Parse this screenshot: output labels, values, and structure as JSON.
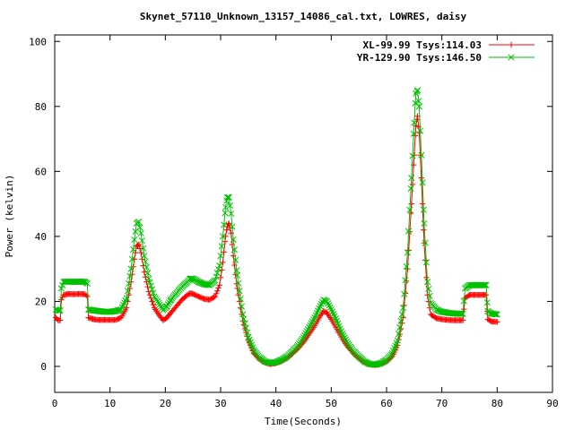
{
  "chart_data": {
    "type": "scatter",
    "title": "Skynet_57110_Unknown_13157_14086_cal.txt, LOWRES, daisy",
    "xlabel": "Time(Seconds)",
    "ylabel": "Power (kelvin)",
    "xlim": [
      0,
      90
    ],
    "ylim": [
      -8,
      102
    ],
    "xticks": [
      0,
      10,
      20,
      30,
      40,
      50,
      60,
      70,
      80,
      90
    ],
    "yticks": [
      0,
      20,
      40,
      60,
      80,
      100
    ],
    "grid": false,
    "legend_position": "top-right",
    "series": [
      {
        "name": "XL-99.99 Tsys:114.03",
        "color": "#ff0000",
        "marker": "plus",
        "points": [
          [
            0.2,
            15
          ],
          [
            0.6,
            14.2
          ],
          [
            1.0,
            14.2
          ],
          [
            1.2,
            20.5
          ],
          [
            1.6,
            22
          ],
          [
            2.5,
            22.3
          ],
          [
            3.5,
            22.2
          ],
          [
            4.5,
            22.3
          ],
          [
            5.5,
            22.2
          ],
          [
            5.9,
            21.5
          ],
          [
            6.1,
            15
          ],
          [
            7,
            14.5
          ],
          [
            8,
            14.3
          ],
          [
            9,
            14.3
          ],
          [
            10,
            14.3
          ],
          [
            11,
            14.3
          ],
          [
            12,
            15
          ],
          [
            13,
            18
          ],
          [
            13.8,
            26
          ],
          [
            14.4,
            33
          ],
          [
            14.8,
            37
          ],
          [
            15.2,
            37.5
          ],
          [
            15.6,
            35
          ],
          [
            16.2,
            29
          ],
          [
            17,
            23
          ],
          [
            18,
            18
          ],
          [
            19,
            15.5
          ],
          [
            19.6,
            14.2
          ],
          [
            20.3,
            15
          ],
          [
            21,
            16.5
          ],
          [
            22,
            18.5
          ],
          [
            23,
            20.5
          ],
          [
            24,
            22
          ],
          [
            24.5,
            22.5
          ],
          [
            25,
            22.3
          ],
          [
            26,
            21.5
          ],
          [
            27,
            20.8
          ],
          [
            28,
            20.5
          ],
          [
            29,
            21.5
          ],
          [
            29.8,
            25
          ],
          [
            30.4,
            32
          ],
          [
            30.9,
            40
          ],
          [
            31.2,
            43
          ],
          [
            31.5,
            44
          ],
          [
            31.9,
            41
          ],
          [
            32.3,
            34
          ],
          [
            33,
            24
          ],
          [
            34,
            14
          ],
          [
            35,
            8
          ],
          [
            36,
            4
          ],
          [
            37,
            2.3
          ],
          [
            38,
            1.2
          ],
          [
            39,
            0.7
          ],
          [
            40,
            1
          ],
          [
            41,
            1.6
          ],
          [
            42,
            2.6
          ],
          [
            43,
            4
          ],
          [
            44,
            5.5
          ],
          [
            45,
            7.5
          ],
          [
            46,
            10
          ],
          [
            47,
            12.5
          ],
          [
            48,
            15.5
          ],
          [
            48.6,
            17
          ],
          [
            49.2,
            16.5
          ],
          [
            50,
            14.5
          ],
          [
            51,
            11.5
          ],
          [
            52,
            8.5
          ],
          [
            53,
            6
          ],
          [
            54,
            4
          ],
          [
            55,
            2.5
          ],
          [
            56,
            1.3
          ],
          [
            57,
            0.6
          ],
          [
            58,
            0.4
          ],
          [
            59,
            0.8
          ],
          [
            60,
            1.5
          ],
          [
            61,
            3
          ],
          [
            62,
            6.5
          ],
          [
            63,
            15
          ],
          [
            63.8,
            30
          ],
          [
            64.5,
            50
          ],
          [
            65,
            65
          ],
          [
            65.3,
            74
          ],
          [
            65.6,
            77
          ],
          [
            65.9,
            72
          ],
          [
            66.3,
            58
          ],
          [
            66.8,
            38
          ],
          [
            67.4,
            22
          ],
          [
            68,
            16
          ],
          [
            69,
            14.8
          ],
          [
            70,
            14.5
          ],
          [
            71,
            14.3
          ],
          [
            72,
            14.2
          ],
          [
            73,
            14.2
          ],
          [
            73.8,
            14.2
          ],
          [
            74.2,
            21
          ],
          [
            75,
            22
          ],
          [
            76,
            22
          ],
          [
            77,
            22
          ],
          [
            78,
            22
          ],
          [
            78.3,
            14.5
          ],
          [
            79,
            13.8
          ],
          [
            80,
            13.7
          ]
        ]
      },
      {
        "name": "YR-129.90 Tsys:146.50",
        "color": "#00c000",
        "marker": "cross",
        "points": [
          [
            0.2,
            17.5
          ],
          [
            0.6,
            17.2
          ],
          [
            1.0,
            17.2
          ],
          [
            1.2,
            24
          ],
          [
            1.6,
            26
          ],
          [
            2.5,
            26.1
          ],
          [
            3.5,
            26
          ],
          [
            4.5,
            26.1
          ],
          [
            5.5,
            26
          ],
          [
            5.9,
            25.5
          ],
          [
            6.1,
            17.5
          ],
          [
            7,
            17.2
          ],
          [
            8,
            17
          ],
          [
            9,
            16.8
          ],
          [
            10,
            16.8
          ],
          [
            11,
            17
          ],
          [
            12,
            17.5
          ],
          [
            13,
            21
          ],
          [
            13.8,
            30
          ],
          [
            14.4,
            39
          ],
          [
            14.8,
            44
          ],
          [
            15.2,
            44.5
          ],
          [
            15.6,
            41
          ],
          [
            16.2,
            34
          ],
          [
            17,
            27
          ],
          [
            18,
            21.5
          ],
          [
            19,
            19
          ],
          [
            19.6,
            17.3
          ],
          [
            20.3,
            18.5
          ],
          [
            21,
            20.5
          ],
          [
            22,
            22.5
          ],
          [
            23,
            24.5
          ],
          [
            24,
            26
          ],
          [
            24.5,
            27
          ],
          [
            25,
            27
          ],
          [
            26,
            26
          ],
          [
            27,
            25.3
          ],
          [
            28,
            25
          ],
          [
            29,
            26.5
          ],
          [
            29.8,
            31
          ],
          [
            30.4,
            40
          ],
          [
            30.9,
            49
          ],
          [
            31.2,
            52
          ],
          [
            31.5,
            52
          ],
          [
            31.9,
            47
          ],
          [
            32.3,
            39
          ],
          [
            33,
            28
          ],
          [
            34,
            16
          ],
          [
            35,
            9
          ],
          [
            36,
            5
          ],
          [
            37,
            2.8
          ],
          [
            38,
            1.5
          ],
          [
            39,
            1
          ],
          [
            40,
            1.3
          ],
          [
            41,
            2
          ],
          [
            42,
            3
          ],
          [
            43,
            4.7
          ],
          [
            44,
            6.5
          ],
          [
            45,
            9
          ],
          [
            46,
            12
          ],
          [
            47,
            15
          ],
          [
            48,
            18.5
          ],
          [
            48.6,
            20.5
          ],
          [
            49.2,
            20
          ],
          [
            50,
            17.5
          ],
          [
            51,
            14
          ],
          [
            52,
            10
          ],
          [
            53,
            7
          ],
          [
            54,
            4.7
          ],
          [
            55,
            3
          ],
          [
            56,
            1.5
          ],
          [
            57,
            0.7
          ],
          [
            58,
            0.5
          ],
          [
            59,
            1
          ],
          [
            60,
            2
          ],
          [
            61,
            4
          ],
          [
            62,
            8
          ],
          [
            63,
            18
          ],
          [
            63.8,
            35
          ],
          [
            64.5,
            58
          ],
          [
            65,
            75
          ],
          [
            65.3,
            84
          ],
          [
            65.6,
            85
          ],
          [
            65.9,
            80
          ],
          [
            66.3,
            65
          ],
          [
            66.8,
            44
          ],
          [
            67.4,
            26
          ],
          [
            68,
            19.5
          ],
          [
            69,
            17.5
          ],
          [
            70,
            16.8
          ],
          [
            71,
            16.5
          ],
          [
            72,
            16.3
          ],
          [
            73,
            16.2
          ],
          [
            73.8,
            16.2
          ],
          [
            74.2,
            24
          ],
          [
            75,
            25
          ],
          [
            76,
            25
          ],
          [
            77,
            25
          ],
          [
            78,
            25
          ],
          [
            78.3,
            17
          ],
          [
            79,
            16.2
          ],
          [
            80,
            16
          ]
        ]
      }
    ]
  }
}
